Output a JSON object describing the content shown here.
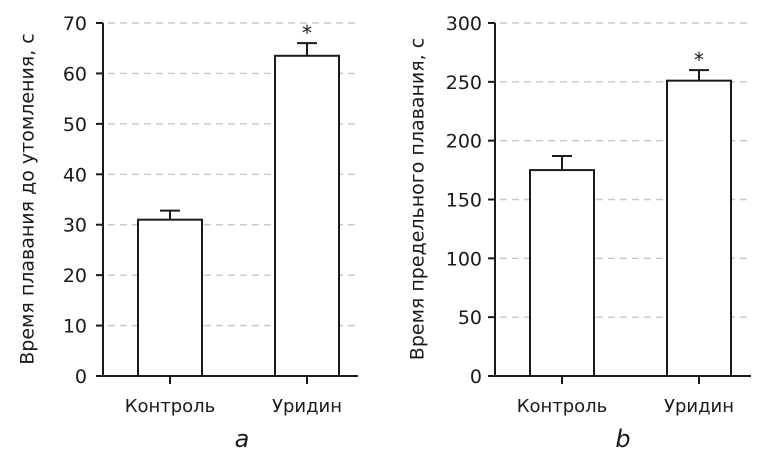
{
  "chart_data": [
    {
      "type": "bar",
      "panel": "a",
      "ylabel": "Время плавания до утомления, с",
      "categories": [
        "Контроль",
        "Уридин"
      ],
      "values": [
        31,
        63.5
      ],
      "error_upper": [
        32.8,
        66
      ],
      "annotations": [
        "",
        "*"
      ],
      "ylim": [
        0,
        70
      ],
      "yticks": [
        0,
        10,
        20,
        30,
        40,
        50,
        60,
        70
      ],
      "grid": true
    },
    {
      "type": "bar",
      "panel": "b",
      "ylabel": "Время предельного плавания, с",
      "categories": [
        "Контроль",
        "Уридин"
      ],
      "values": [
        175,
        251
      ],
      "error_upper": [
        187,
        260
      ],
      "annotations": [
        "",
        "*"
      ],
      "ylim": [
        0,
        300
      ],
      "yticks": [
        0,
        50,
        100,
        150,
        200,
        250,
        300
      ],
      "grid": true
    }
  ],
  "colors": {
    "axis": "#1a1a1a",
    "grid": "#c8c8c8",
    "bar_fill": "#ffffff",
    "bar_stroke": "#1a1a1a"
  }
}
